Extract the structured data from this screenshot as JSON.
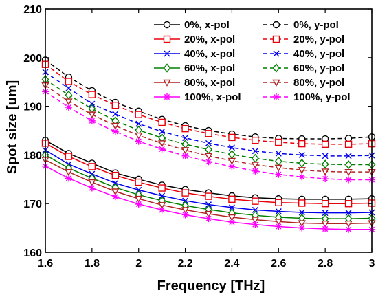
{
  "chart_data": {
    "type": "line",
    "title": "",
    "xlabel": "Frequency [THz]",
    "ylabel": "Spot size [um]",
    "xlim": [
      1.6,
      3.0
    ],
    "ylim": [
      160,
      210
    ],
    "xticks": [
      1.6,
      1.8,
      2.0,
      2.2,
      2.4,
      2.6,
      2.8,
      3.0
    ],
    "xtick_labels": [
      "1.6",
      "1.8",
      "2",
      "2.2",
      "2.4",
      "2.6",
      "2.8",
      "3"
    ],
    "yticks": [
      160,
      170,
      180,
      190,
      200,
      210
    ],
    "ytick_labels": [
      "160",
      "170",
      "180",
      "190",
      "200",
      "210"
    ],
    "grid": false,
    "legend_position": "top-right",
    "x": [
      1.6,
      1.7,
      1.8,
      1.9,
      2.0,
      2.1,
      2.2,
      2.3,
      2.4,
      2.5,
      2.6,
      2.7,
      2.8,
      2.9,
      3.0
    ],
    "series": [
      {
        "name": "0%, x-pol",
        "color": "#000000",
        "marker": "circle",
        "dash": false,
        "values": [
          183.0,
          180.3,
          178.3,
          176.3,
          175.0,
          173.8,
          172.9,
          172.2,
          171.6,
          171.2,
          171.0,
          170.9,
          170.9,
          170.9,
          171.0
        ]
      },
      {
        "name": "20%, x-pol",
        "color": "#e8000b",
        "marker": "square",
        "dash": false,
        "values": [
          182.4,
          179.7,
          177.6,
          175.8,
          174.4,
          173.2,
          172.2,
          171.5,
          170.9,
          170.5,
          170.2,
          170.1,
          170.0,
          170.0,
          170.1
        ]
      },
      {
        "name": "40%, x-pol",
        "color": "#0000ee",
        "marker": "x",
        "dash": false,
        "values": [
          181.0,
          178.1,
          176.1,
          174.2,
          172.8,
          171.6,
          170.6,
          169.8,
          169.2,
          168.7,
          168.4,
          168.2,
          168.1,
          168.1,
          168.2
        ]
      },
      {
        "name": "60%, x-pol",
        "color": "#008000",
        "marker": "diamond",
        "dash": false,
        "values": [
          180.0,
          177.3,
          175.2,
          173.3,
          171.8,
          170.6,
          169.6,
          168.8,
          168.1,
          167.6,
          167.2,
          167.0,
          166.9,
          166.9,
          167.0
        ]
      },
      {
        "name": "80%, x-pol",
        "color": "#b22222",
        "marker": "triangle-down",
        "dash": false,
        "values": [
          179.0,
          176.5,
          174.4,
          172.5,
          171.0,
          169.7,
          168.7,
          167.9,
          167.2,
          166.7,
          166.3,
          166.0,
          165.9,
          165.9,
          166.0
        ]
      },
      {
        "name": "100%, x-pol",
        "color": "#ff00ff",
        "marker": "star",
        "dash": false,
        "values": [
          177.7,
          175.2,
          173.2,
          171.4,
          169.9,
          168.7,
          167.7,
          166.9,
          166.2,
          165.7,
          165.3,
          165.0,
          164.8,
          164.7,
          164.7
        ]
      },
      {
        "name": "0%, y-pol",
        "color": "#000000",
        "marker": "circle",
        "dash": true,
        "values": [
          199.5,
          196.0,
          193.2,
          190.8,
          189.0,
          187.3,
          186.0,
          185.0,
          184.3,
          183.7,
          183.4,
          183.3,
          183.3,
          183.4,
          183.7
        ]
      },
      {
        "name": "20%, y-pol",
        "color": "#e8000b",
        "marker": "square",
        "dash": true,
        "values": [
          198.6,
          195.1,
          192.4,
          190.2,
          188.3,
          186.7,
          185.4,
          184.4,
          183.6,
          183.0,
          182.6,
          182.3,
          182.2,
          182.2,
          182.3
        ]
      },
      {
        "name": "40%, y-pol",
        "color": "#0000ee",
        "marker": "x",
        "dash": true,
        "values": [
          197.0,
          193.7,
          190.5,
          188.4,
          186.4,
          184.8,
          183.5,
          182.4,
          181.5,
          180.8,
          180.3,
          180.0,
          179.8,
          179.8,
          179.9
        ]
      },
      {
        "name": "60%, y-pol",
        "color": "#008000",
        "marker": "diamond",
        "dash": true,
        "values": [
          195.5,
          192.3,
          189.5,
          187.0,
          185.1,
          183.5,
          182.2,
          181.1,
          180.1,
          179.3,
          178.7,
          178.3,
          178.1,
          178.0,
          178.0
        ]
      },
      {
        "name": "80%, y-pol",
        "color": "#b22222",
        "marker": "triangle-down",
        "dash": true,
        "values": [
          194.3,
          191.0,
          188.3,
          186.0,
          184.0,
          182.4,
          181.0,
          179.8,
          178.8,
          178.0,
          177.4,
          176.9,
          176.6,
          176.5,
          176.5
        ]
      },
      {
        "name": "100%, y-pol",
        "color": "#ff00ff",
        "marker": "star",
        "dash": true,
        "values": [
          193.0,
          189.8,
          187.0,
          184.8,
          182.8,
          181.2,
          179.8,
          178.6,
          177.6,
          176.7,
          176.0,
          175.5,
          175.1,
          174.9,
          174.9
        ]
      }
    ]
  }
}
